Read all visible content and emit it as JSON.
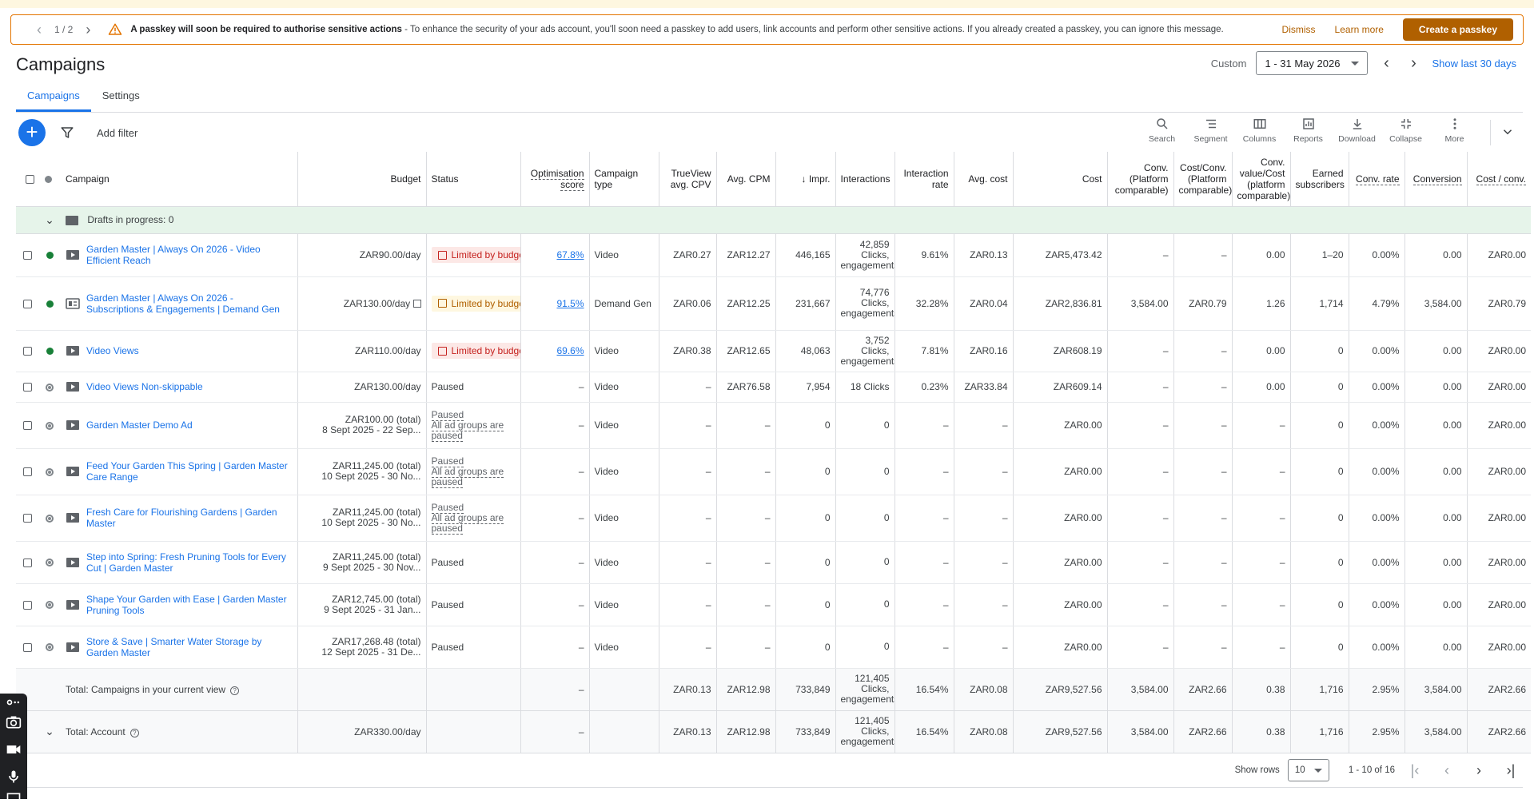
{
  "banner": {
    "pager": "1 / 2",
    "title": "A passkey will soon be required to authorise sensitive actions",
    "text": " - To enhance the security of your ads account, you'll soon need a passkey to add users, link accounts and perform other sensitive actions. If you already created a passkey, you can ignore this message.",
    "dismiss": "Dismiss",
    "learn_more": "Learn more",
    "create": "Create a passkey"
  },
  "header": {
    "title": "Campaigns",
    "custom": "Custom",
    "date_range": "1 - 31 May 2026",
    "show_last": "Show last 30 days"
  },
  "tabs": [
    {
      "label": "Campaigns"
    },
    {
      "label": "Settings"
    }
  ],
  "toolbar": {
    "add_filter": "Add filter",
    "tools": [
      {
        "label": "Search",
        "icon": "search-icon"
      },
      {
        "label": "Segment",
        "icon": "segment-icon"
      },
      {
        "label": "Columns",
        "icon": "columns-icon"
      },
      {
        "label": "Reports",
        "icon": "reports-icon"
      },
      {
        "label": "Download",
        "icon": "download-icon"
      },
      {
        "label": "Collapse",
        "icon": "collapse-icon"
      },
      {
        "label": "More",
        "icon": "more-vert-icon"
      }
    ]
  },
  "table": {
    "columns": {
      "campaign": "Campaign",
      "budget": "Budget",
      "status": "Status",
      "opt_score": "Optimisation score",
      "campaign_type": "Campaign type",
      "trueview": "TrueView avg. CPV",
      "avg_cpm": "Avg. CPM",
      "impr": "↓ Impr.",
      "interactions": "Interactions",
      "interaction_rate": "Interaction rate",
      "avg_cost": "Avg. cost",
      "cost": "Cost",
      "conv_pc": "Conv. (Platform comparable)",
      "cost_conv_pc": "Cost/Conv. (Platform comparable)",
      "conv_value_cost": "Conv. value/Cost (platform comparable)",
      "earned_subs": "Earned subscribers",
      "conv_rate": "Conv. rate",
      "conversion": "Conversion",
      "cost_conv": "Cost / conv."
    },
    "drafts": "Drafts in progress: 0",
    "rows": [
      {
        "name": "Garden Master | Always On 2026 - Video Efficient Reach",
        "status_dot": "green",
        "budget": "ZAR90.00/day",
        "budget2": "",
        "status": "Limited by budget",
        "status_kind": "red",
        "status2": "",
        "score": "67.8%",
        "type": "Video",
        "cpv": "ZAR0.27",
        "cpm": "ZAR12.27",
        "impr": "446,165",
        "interactions": "42,859 Clicks, engagements",
        "irate": "9.61%",
        "avgcost": "ZAR0.13",
        "cost": "ZAR5,473.42",
        "conv": "–",
        "costconv": "–",
        "cvc": "0.00",
        "earned": "1–20",
        "convrate": "0.00%",
        "conversion": "0.00",
        "costperconv": "ZAR0.00"
      },
      {
        "name": "Garden Master | Always On 2026 - Subscriptions & Engagements | Demand Gen",
        "status_dot": "green",
        "budget": "ZAR130.00/day",
        "budget2": "",
        "status": "Limited by budget",
        "status_kind": "amber",
        "status2": "",
        "score": "91.5%",
        "type": "Demand Gen",
        "cpv": "ZAR0.06",
        "cpm": "ZAR12.25",
        "impr": "231,667",
        "interactions": "74,776 Clicks, engagements",
        "irate": "32.28%",
        "avgcost": "ZAR0.04",
        "cost": "ZAR2,836.81",
        "conv": "3,584.00",
        "costconv": "ZAR0.79",
        "cvc": "1.26",
        "earned": "1,714",
        "convrate": "4.79%",
        "conversion": "3,584.00",
        "costperconv": "ZAR0.79"
      },
      {
        "name": "Video Views",
        "status_dot": "green",
        "budget": "ZAR110.00/day",
        "budget2": "",
        "status": "Limited by budget",
        "status_kind": "red",
        "status2": "",
        "score": "69.6%",
        "type": "Video",
        "cpv": "ZAR0.38",
        "cpm": "ZAR12.65",
        "impr": "48,063",
        "interactions": "3,752 Clicks, engagements",
        "irate": "7.81%",
        "avgcost": "ZAR0.16",
        "cost": "ZAR608.19",
        "conv": "–",
        "costconv": "–",
        "cvc": "0.00",
        "earned": "0",
        "convrate": "0.00%",
        "conversion": "0.00",
        "costperconv": "ZAR0.00"
      },
      {
        "name": "Video Views Non-skippable",
        "status_dot": "paused",
        "budget": "ZAR130.00/day",
        "budget2": "",
        "status": "Paused",
        "status_kind": "plain",
        "status2": "",
        "score": "–",
        "type": "Video",
        "cpv": "–",
        "cpm": "ZAR76.58",
        "impr": "7,954",
        "interactions": "18 Clicks",
        "irate": "0.23%",
        "avgcost": "ZAR33.84",
        "cost": "ZAR609.14",
        "conv": "–",
        "costconv": "–",
        "cvc": "0.00",
        "earned": "0",
        "convrate": "0.00%",
        "conversion": "0.00",
        "costperconv": "ZAR0.00"
      },
      {
        "name": "Garden Master Demo Ad",
        "status_dot": "paused",
        "budget": "ZAR100.00 (total)",
        "budget2": "8 Sept 2025 - 22 Sep...",
        "status": "Paused",
        "status_kind": "sub",
        "status2": "All ad groups are paused",
        "score": "–",
        "type": "Video",
        "cpv": "–",
        "cpm": "–",
        "impr": "0",
        "interactions": "0",
        "irate": "–",
        "avgcost": "–",
        "cost": "ZAR0.00",
        "conv": "–",
        "costconv": "–",
        "cvc": "–",
        "earned": "0",
        "convrate": "0.00%",
        "conversion": "0.00",
        "costperconv": "ZAR0.00"
      },
      {
        "name": "Feed Your Garden This Spring | Garden Master Care Range",
        "status_dot": "paused",
        "budget": "ZAR11,245.00 (total)",
        "budget2": "10 Sept 2025 - 30 No...",
        "status": "Paused",
        "status_kind": "sub",
        "status2": "All ad groups are paused",
        "score": "–",
        "type": "Video",
        "cpv": "–",
        "cpm": "–",
        "impr": "0",
        "interactions": "0",
        "irate": "–",
        "avgcost": "–",
        "cost": "ZAR0.00",
        "conv": "–",
        "costconv": "–",
        "cvc": "–",
        "earned": "0",
        "convrate": "0.00%",
        "conversion": "0.00",
        "costperconv": "ZAR0.00"
      },
      {
        "name": " Fresh Care for Flourishing Gardens | Garden Master",
        "status_dot": "paused",
        "budget": "ZAR11,245.00 (total)",
        "budget2": "10 Sept 2025 - 30 No...",
        "status": "Paused",
        "status_kind": "sub",
        "status2": "All ad groups are paused",
        "score": "–",
        "type": "Video",
        "cpv": "–",
        "cpm": "–",
        "impr": "0",
        "interactions": "0",
        "irate": "–",
        "avgcost": "–",
        "cost": "ZAR0.00",
        "conv": "–",
        "costconv": "–",
        "cvc": "–",
        "earned": "0",
        "convrate": "0.00%",
        "conversion": "0.00",
        "costperconv": "ZAR0.00"
      },
      {
        "name": "Step into Spring: Fresh Pruning Tools for Every Cut | Garden Master",
        "status_dot": "paused",
        "budget": "ZAR11,245.00 (total)",
        "budget2": "9 Sept 2025 - 30 Nov...",
        "status": "Paused",
        "status_kind": "plain",
        "status2": "",
        "score": "–",
        "type": "Video",
        "cpv": "–",
        "cpm": "–",
        "impr": "0",
        "interactions": "0",
        "irate": "–",
        "avgcost": "–",
        "cost": "ZAR0.00",
        "conv": "–",
        "costconv": "–",
        "cvc": "–",
        "earned": "0",
        "convrate": "0.00%",
        "conversion": "0.00",
        "costperconv": "ZAR0.00"
      },
      {
        "name": "Shape Your Garden with Ease | Garden Master Pruning Tools",
        "status_dot": "paused",
        "budget": "ZAR12,745.00 (total)",
        "budget2": "9 Sept 2025 - 31 Jan...",
        "status": "Paused",
        "status_kind": "plain",
        "status2": "",
        "score": "–",
        "type": "Video",
        "cpv": "–",
        "cpm": "–",
        "impr": "0",
        "interactions": "0",
        "irate": "–",
        "avgcost": "–",
        "cost": "ZAR0.00",
        "conv": "–",
        "costconv": "–",
        "cvc": "–",
        "earned": "0",
        "convrate": "0.00%",
        "conversion": "0.00",
        "costperconv": "ZAR0.00"
      },
      {
        "name": "Store & Save | Smarter Water Storage by Garden Master",
        "status_dot": "paused",
        "budget": "ZAR17,268.48 (total)",
        "budget2": "12 Sept 2025 - 31 De...",
        "status": "Paused",
        "status_kind": "plain",
        "status2": "",
        "score": "–",
        "type": "Video",
        "cpv": "–",
        "cpm": "–",
        "impr": "0",
        "interactions": "0",
        "irate": "–",
        "avgcost": "–",
        "cost": "ZAR0.00",
        "conv": "–",
        "costconv": "–",
        "cvc": "–",
        "earned": "0",
        "convrate": "0.00%",
        "conversion": "0.00",
        "costperconv": "ZAR0.00"
      }
    ],
    "totals": [
      {
        "label": "Total: Campaigns in your current view",
        "budget": "",
        "score": "–",
        "cpv": "ZAR0.13",
        "cpm": "ZAR12.98",
        "impr": "733,849",
        "interactions": "121,405 Clicks, engagements",
        "irate": "16.54%",
        "avgcost": "ZAR0.08",
        "cost": "ZAR9,527.56",
        "conv": "3,584.00",
        "costconv": "ZAR2.66",
        "cvc": "0.38",
        "earned": "1,716",
        "convrate": "2.95%",
        "conversion": "3,584.00",
        "costperconv": "ZAR2.66"
      },
      {
        "label": "Total: Account",
        "budget": "ZAR330.00/day",
        "score": "–",
        "cpv": "ZAR0.13",
        "cpm": "ZAR12.98",
        "impr": "733,849",
        "interactions": "121,405 Clicks, engagements",
        "irate": "16.54%",
        "avgcost": "ZAR0.08",
        "cost": "ZAR9,527.56",
        "conv": "3,584.00",
        "costconv": "ZAR2.66",
        "cvc": "0.38",
        "earned": "1,716",
        "convrate": "2.95%",
        "conversion": "3,584.00",
        "costperconv": "ZAR2.66"
      }
    ]
  },
  "pagination": {
    "show_rows": "Show rows",
    "rows_value": "10",
    "range": "1 - 10 of 16"
  },
  "colors": {
    "accent": "#1a73e8",
    "warning": "#e37400",
    "banner_button": "#b06000",
    "enabled": "#188038"
  }
}
